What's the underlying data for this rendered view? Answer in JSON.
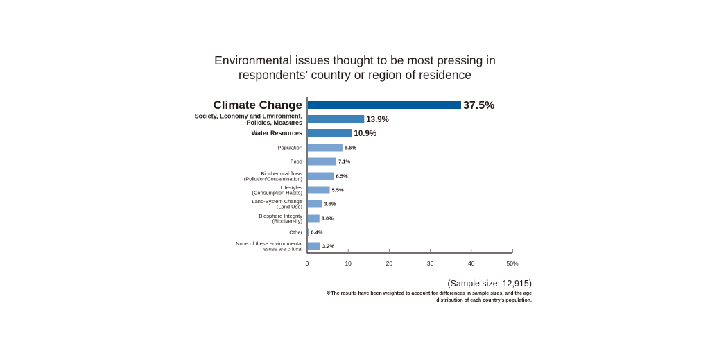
{
  "chart_data": {
    "type": "bar",
    "orientation": "horizontal",
    "title": "Environmental issues thought to be most pressing in respondents' country or region of residence",
    "title_lines": [
      "Environmental issues thought to be most pressing in",
      "respondents’ country or region of residence"
    ],
    "categories": [
      [
        "Climate Change"
      ],
      [
        "Society, Economy and Environment,",
        "Policies, Measures"
      ],
      [
        "Water Resources"
      ],
      [
        "Population"
      ],
      [
        "Food"
      ],
      [
        "Biochemical flows",
        "(Pollution/Contamination)"
      ],
      [
        "Lifestyles",
        "(Consumption Habits)"
      ],
      [
        "Land-System Change",
        "(Land Use)"
      ],
      [
        "Biosphere Integrity",
        "(Biodiversity)"
      ],
      [
        "Other"
      ],
      [
        "None of these environmental",
        "issues are critical"
      ]
    ],
    "values": [
      37.5,
      13.9,
      10.9,
      8.6,
      7.1,
      6.5,
      5.5,
      3.6,
      3.0,
      0.4,
      3.2
    ],
    "value_labels": [
      "37.5%",
      "13.9%",
      "10.9%",
      "8.6%",
      "7.1%",
      "6.5%",
      "5.5%",
      "3.6%",
      "3.0%",
      "0.4%",
      "3.2%"
    ],
    "emphasis": [
      "large",
      "medium",
      "medium",
      "small",
      "small",
      "small",
      "small",
      "small",
      "small",
      "small",
      "small"
    ],
    "bar_colors": [
      "#005a9c",
      "#3c82b9",
      "#3c82b9",
      "#7ba3d2",
      "#7ba3d2",
      "#7ba3d2",
      "#7ba3d2",
      "#7ba3d2",
      "#7ba3d2",
      "#7ba3d2",
      "#7ba3d2"
    ],
    "xlim": [
      0,
      50
    ],
    "xticks": [
      0,
      10,
      20,
      30,
      40,
      50
    ],
    "xtick_labels": [
      "0",
      "10",
      "20",
      "30",
      "40",
      "50%"
    ],
    "xlabel": "",
    "ylabel": "",
    "grid": false
  },
  "footer": {
    "sample_size": "(Sample size: 12,915)",
    "note_lines": [
      "※The results have been weighted to account for differences in sample sizes, and the age",
      "distribution of each country’s population."
    ]
  }
}
